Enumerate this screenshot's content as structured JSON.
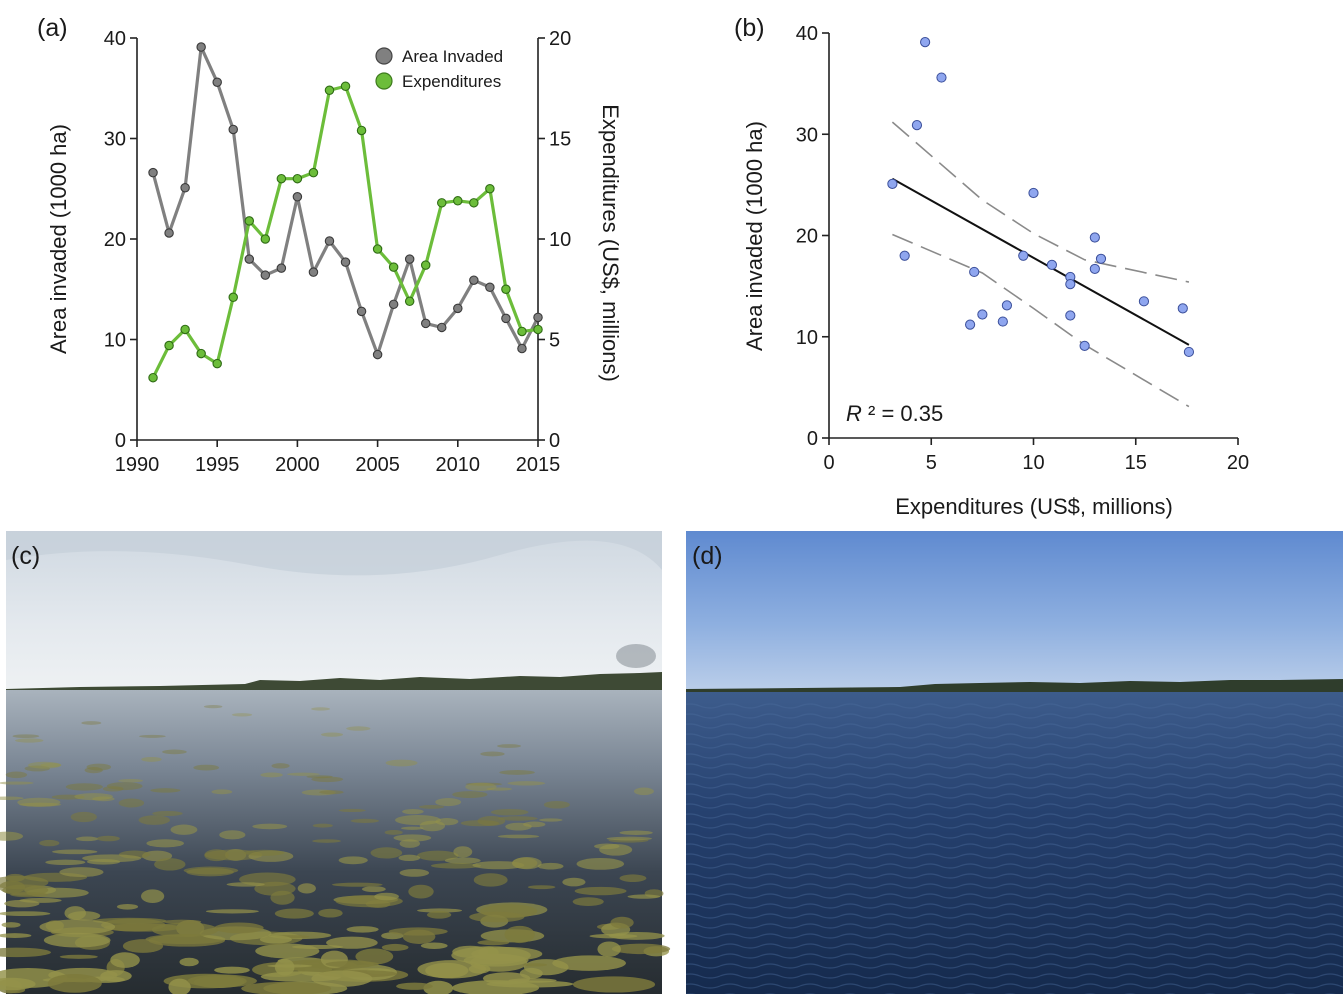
{
  "panels": {
    "a": "(a)",
    "b": "(b)",
    "c": "(c)",
    "d": "(d)"
  },
  "chart_data": [
    {
      "type": "line",
      "panel": "(a)",
      "x": [
        1991,
        1992,
        1993,
        1994,
        1995,
        1996,
        1997,
        1998,
        1999,
        2000,
        2001,
        2002,
        2003,
        2004,
        2005,
        2006,
        2007,
        2008,
        2009,
        2010,
        2011,
        2012,
        2013,
        2014,
        2015
      ],
      "series": [
        {
          "name": "Area Invaded",
          "axis": "left",
          "color": "#808080",
          "values": [
            26.6,
            20.6,
            25.1,
            39.1,
            35.6,
            30.9,
            18.0,
            16.4,
            17.1,
            24.2,
            16.7,
            19.8,
            17.7,
            12.8,
            8.5,
            13.5,
            18.0,
            11.6,
            11.2,
            13.1,
            15.9,
            15.2,
            12.1,
            9.1,
            12.2
          ]
        },
        {
          "name": "Expenditures",
          "axis": "right",
          "color": "#6cbd3a",
          "values": [
            3.1,
            4.7,
            5.5,
            4.3,
            3.8,
            7.1,
            10.9,
            10.0,
            13.0,
            13.0,
            13.3,
            17.4,
            17.6,
            15.4,
            9.5,
            8.6,
            6.9,
            8.7,
            11.8,
            11.9,
            11.8,
            12.5,
            7.5,
            5.4,
            5.5
          ]
        }
      ],
      "xlabel": "",
      "ylabel": "Area invaded (1000 ha)",
      "y2label": "Expenditures (US$, millions)",
      "xlim": [
        1990,
        2015
      ],
      "xticks": [
        "1990",
        "1995",
        "2000",
        "2005",
        "2010",
        "2015"
      ],
      "ylim": [
        0,
        40
      ],
      "yticks": [
        "0",
        "10",
        "20",
        "30",
        "40"
      ],
      "y2lim": [
        0,
        20
      ],
      "y2ticks": [
        "0",
        "5",
        "10",
        "15",
        "20"
      ],
      "grid": false,
      "legend": "top-right"
    },
    {
      "type": "scatter",
      "panel": "(b)",
      "points": [
        {
          "x": 3.1,
          "y": 25.1
        },
        {
          "x": 3.7,
          "y": 18.0
        },
        {
          "x": 4.3,
          "y": 30.9
        },
        {
          "x": 4.7,
          "y": 39.1
        },
        {
          "x": 5.5,
          "y": 35.6
        },
        {
          "x": 6.9,
          "y": 11.2
        },
        {
          "x": 7.1,
          "y": 16.4
        },
        {
          "x": 7.5,
          "y": 12.2
        },
        {
          "x": 8.5,
          "y": 11.5
        },
        {
          "x": 8.7,
          "y": 13.1
        },
        {
          "x": 9.5,
          "y": 18.0
        },
        {
          "x": 10.0,
          "y": 24.2
        },
        {
          "x": 10.9,
          "y": 17.1
        },
        {
          "x": 11.8,
          "y": 15.9
        },
        {
          "x": 11.8,
          "y": 15.2
        },
        {
          "x": 11.8,
          "y": 12.1
        },
        {
          "x": 12.5,
          "y": 9.1
        },
        {
          "x": 13.0,
          "y": 16.7
        },
        {
          "x": 13.0,
          "y": 19.8
        },
        {
          "x": 13.3,
          "y": 17.7
        },
        {
          "x": 15.4,
          "y": 13.5
        },
        {
          "x": 17.3,
          "y": 12.8
        },
        {
          "x": 17.6,
          "y": 8.5
        }
      ],
      "point_color": "#8fa6ef",
      "fit_line": {
        "x": [
          3.1,
          17.6
        ],
        "y": [
          25.6,
          9.2
        ]
      },
      "ci_lower": {
        "x": [
          3.1,
          7.5,
          10.0,
          12.5,
          17.6
        ],
        "y": [
          20.1,
          16.3,
          12.8,
          9.2,
          3.1
        ]
      },
      "ci_upper": {
        "x": [
          3.1,
          7.5,
          10.0,
          12.5,
          17.6
        ],
        "y": [
          31.2,
          23.5,
          20.2,
          17.6,
          15.4
        ]
      },
      "annotation_prefix": "R",
      "annotation_suffix": " ² = 0.35",
      "xlabel": "Expenditures (US$, millions)",
      "ylabel": "Area invaded (1000 ha)",
      "xlim": [
        0,
        20
      ],
      "xticks": [
        "0",
        "5",
        "10",
        "15",
        "20"
      ],
      "ylim": [
        0,
        40
      ],
      "yticks": [
        "0",
        "10",
        "20",
        "30",
        "40"
      ],
      "grid": false
    }
  ],
  "photos": {
    "c": {
      "sky": "#dde4ea",
      "water": "#4f5f70",
      "weeds": "#7a7a3a"
    },
    "d": {
      "sky": "#9dbbe2",
      "water": "#1f3b6c"
    }
  }
}
